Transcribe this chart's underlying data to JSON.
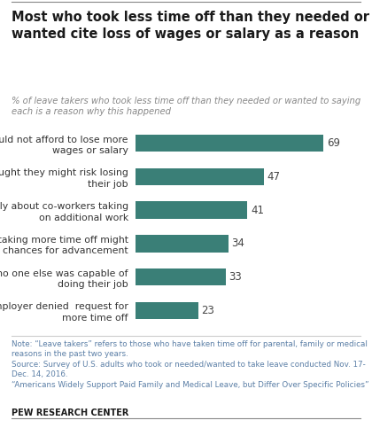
{
  "title": "Most who took less time off than they needed or\nwanted cite loss of wages or salary as a reason",
  "subtitle": "% of leave takers who took less time off than they needed or wanted to saying\neach is a reason why this happened",
  "categories": [
    "Could not afford to lose more\nwages or salary",
    "Thought they might risk losing\ntheir job",
    "Felt badly about co-workers taking\non additional work",
    "Thought taking more time off might\nhurt chances for advancement",
    "Felt no one else was capable of\ndoing their job",
    "Employer denied  request for\nmore time off"
  ],
  "values": [
    69,
    47,
    41,
    34,
    33,
    23
  ],
  "bar_color": "#3a7f77",
  "title_color": "#1a1a1a",
  "subtitle_color": "#888888",
  "note_color": "#5b7fa6",
  "pew_color": "#1a1a1a",
  "note_text": "Note: “Leave takers” refers to those who have taken time off for parental, family or medical\nreasons in the past two years.\nSource: Survey of U.S. adults who took or needed/wanted to take leave conducted Nov. 17-\nDec. 14, 2016.\n“Americans Widely Support Paid Family and Medical Leave, but Differ Over Specific Policies”",
  "source_bold": "PEW RESEARCH CENTER",
  "xlim": [
    0,
    80
  ],
  "background_color": "#ffffff"
}
